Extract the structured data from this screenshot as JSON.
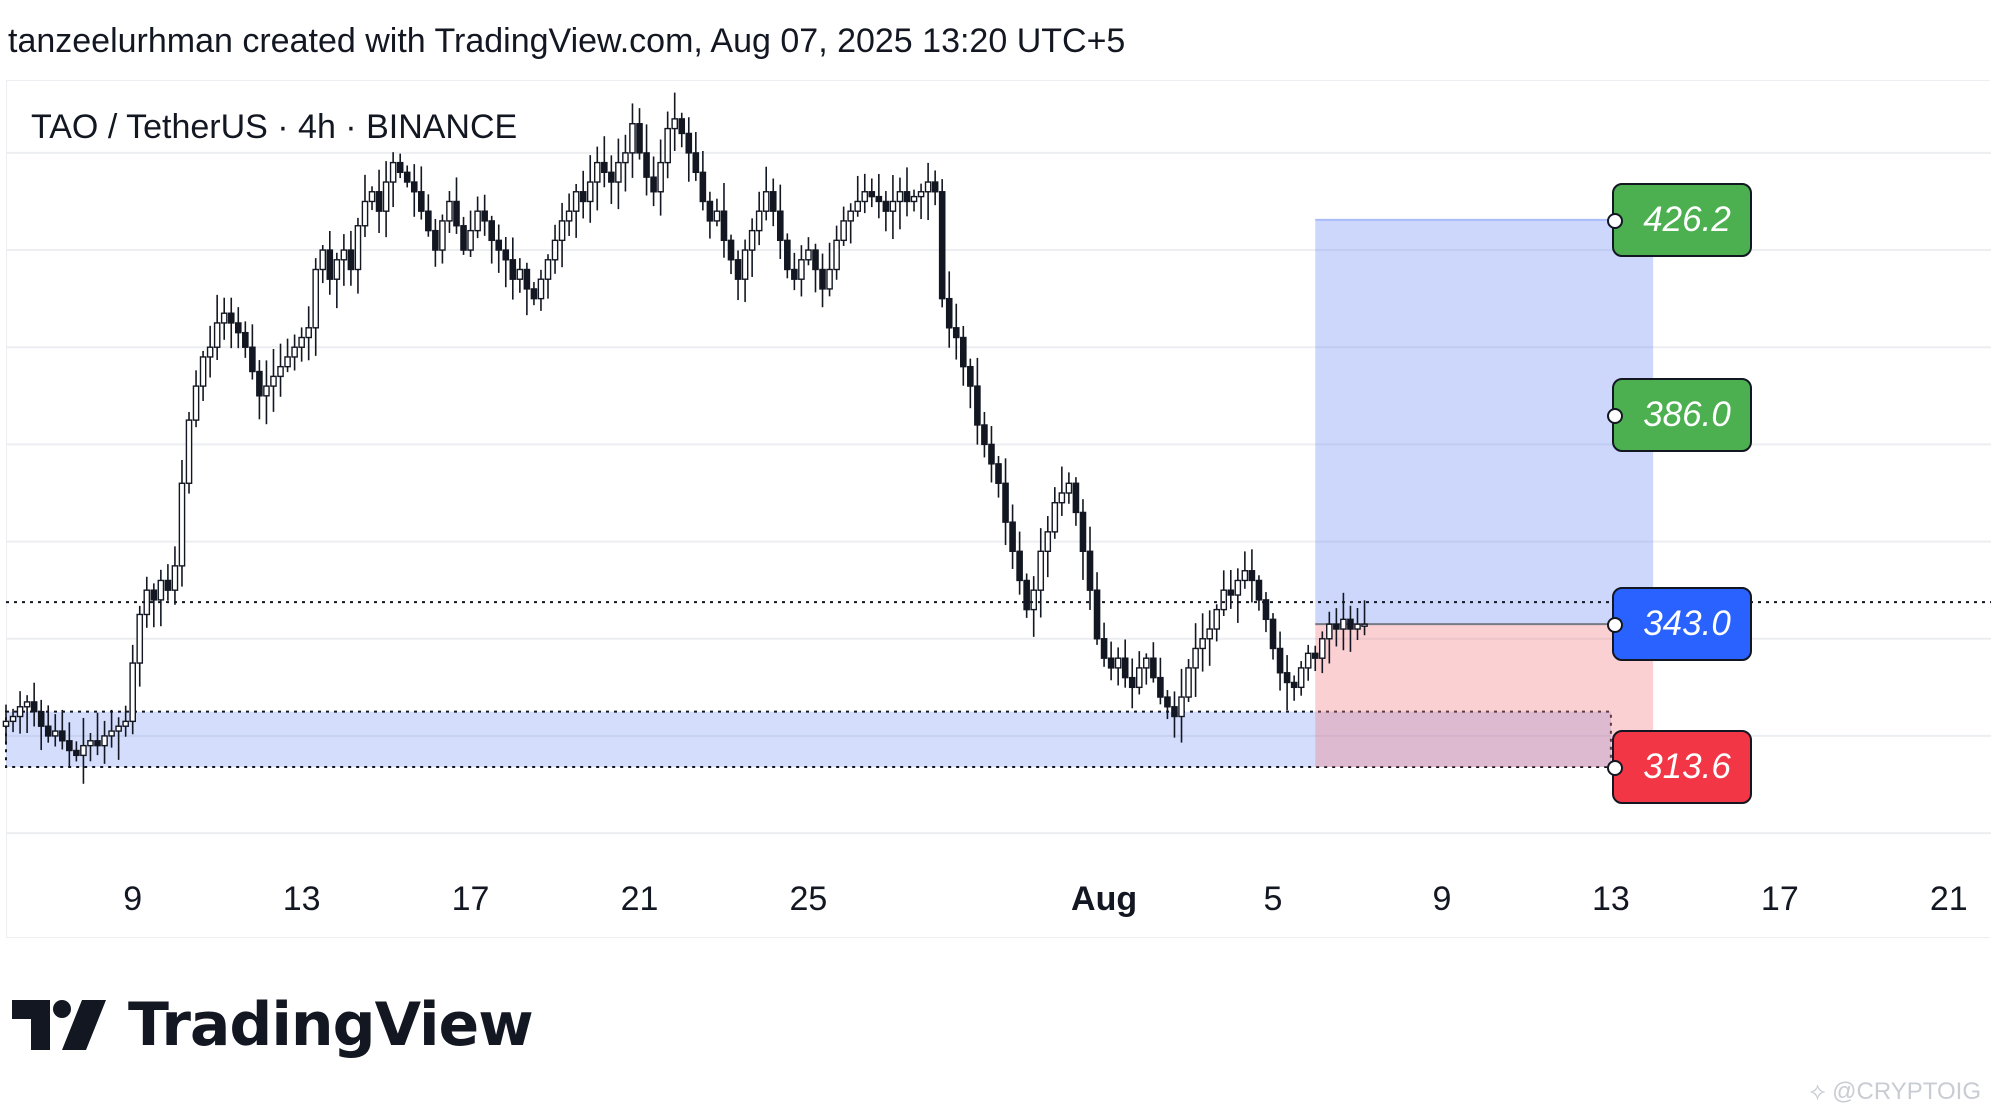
{
  "header": {
    "attribution": "tanzeelurhman created with TradingView.com, Aug 07, 2025 13:20 UTC+5"
  },
  "chart_data": {
    "type": "candlestick",
    "title": "TAO / TetherUS · 4h · BINANCE",
    "x_tick_labels": [
      "9",
      "13",
      "17",
      "21",
      "25",
      "Aug",
      "5",
      "9",
      "13",
      "17",
      "21"
    ],
    "x_tick_dates": [
      "2025-07-09",
      "2025-07-13",
      "2025-07-17",
      "2025-07-21",
      "2025-07-25",
      "2025-08-01",
      "2025-08-05",
      "2025-08-09",
      "2025-08-13",
      "2025-08-17",
      "2025-08-21"
    ],
    "bold_tick": "Aug",
    "x_range": [
      "2025-07-06",
      "2025-08-22"
    ],
    "y_range": [
      278,
      455
    ],
    "grid": {
      "horizontal": true,
      "vertical": false
    },
    "current_price": 343.0,
    "support_zone": {
      "start": "2025-07-06",
      "end": "2025-08-13",
      "low": 313.6,
      "high": 325.0
    },
    "position": {
      "type": "long",
      "start": "2025-08-06",
      "end": "2025-08-14",
      "target_1": 426.2,
      "target_2": 386.0,
      "entry": 343.0,
      "stop": 313.6
    },
    "price_tags": [
      {
        "label": "426.2",
        "value": 426.2,
        "color": "#4caf50"
      },
      {
        "label": "386.0",
        "value": 386.0,
        "color": "#4caf50"
      },
      {
        "label": "343.0",
        "value": 343.0,
        "color": "#2962ff"
      },
      {
        "label": "313.6",
        "value": 313.6,
        "color": "#f23645"
      }
    ],
    "candles_close": [
      323,
      324,
      326,
      327,
      325,
      322,
      320,
      321,
      319,
      317,
      316,
      318,
      319,
      318,
      320,
      321,
      322,
      323,
      335,
      345,
      350,
      348,
      352,
      350,
      355,
      372,
      385,
      392,
      398,
      400,
      405,
      407,
      405,
      403,
      400,
      395,
      390,
      392,
      394,
      396,
      398,
      400,
      402,
      404,
      416,
      420,
      414,
      418,
      420,
      416,
      425,
      430,
      432,
      428,
      434,
      438,
      436,
      434,
      432,
      428,
      424,
      420,
      426,
      430,
      425,
      420,
      424,
      428,
      426,
      422,
      420,
      418,
      414,
      416,
      412,
      410,
      414,
      418,
      422,
      426,
      428,
      432,
      430,
      434,
      438,
      436,
      434,
      438,
      440,
      446,
      440,
      435,
      432,
      438,
      445,
      447,
      444,
      440,
      436,
      430,
      426,
      428,
      422,
      418,
      414,
      420,
      424,
      428,
      432,
      428,
      422,
      416,
      414,
      418,
      420,
      416,
      412,
      416,
      422,
      426,
      428,
      430,
      432,
      431,
      430,
      428,
      430,
      432,
      430,
      431,
      432,
      434,
      432,
      410,
      404,
      402,
      396,
      392,
      384,
      380,
      376,
      372,
      364,
      358,
      352,
      346,
      350,
      358,
      362,
      368,
      370,
      372,
      366,
      358,
      350,
      340,
      336,
      334,
      336,
      332,
      330,
      334,
      336,
      332,
      328,
      326,
      324,
      328,
      334,
      338,
      340,
      342,
      346,
      350,
      349,
      352,
      354,
      352,
      348,
      344,
      338,
      333,
      331,
      330,
      334,
      337,
      336,
      340,
      343,
      342,
      344,
      342,
      343,
      343
    ]
  },
  "logo": {
    "text": "TradingView"
  },
  "watermark": {
    "text": "⟡ @CRYPTOIG"
  }
}
